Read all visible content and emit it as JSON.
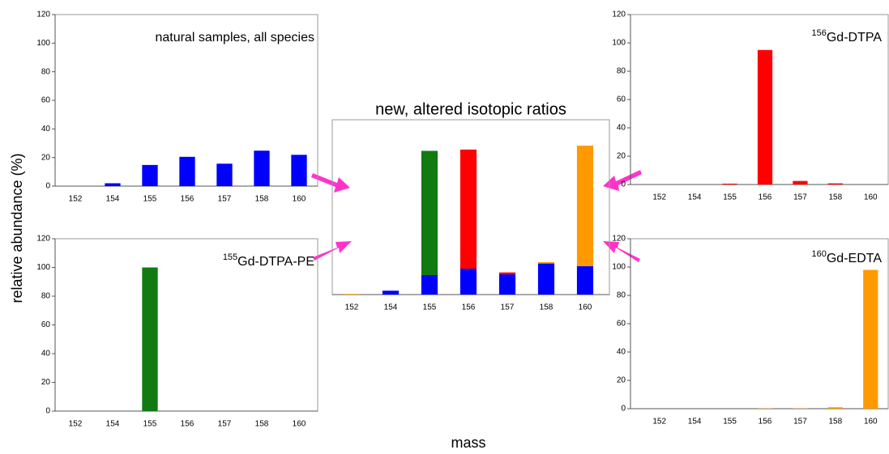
{
  "xlabel": "mass",
  "ylabel": "relative abundance (%)",
  "chart_data": [
    {
      "type": "bar",
      "title": "natural samples, all species",
      "categories": [
        "152",
        "154",
        "155",
        "156",
        "157",
        "158",
        "160"
      ],
      "values": [
        0,
        2,
        14.8,
        20.5,
        15.7,
        24.8,
        21.9
      ],
      "color": "#0000ff",
      "ylim": [
        0,
        120
      ],
      "yticks": [
        0,
        20,
        40,
        60,
        80,
        100,
        120
      ]
    },
    {
      "type": "bar",
      "title": {
        "sup": "156",
        "text": "Gd-DTPA"
      },
      "categories": [
        "152",
        "154",
        "155",
        "156",
        "157",
        "158",
        "160"
      ],
      "values": [
        0,
        0,
        0.6,
        95,
        2.5,
        0.8,
        0
      ],
      "color": "#ff0000",
      "ylim": [
        0,
        120
      ],
      "yticks": [
        0,
        20,
        40,
        60,
        80,
        100,
        120
      ]
    },
    {
      "type": "bar",
      "title": {
        "sup": "155",
        "text": "Gd-DTPA-PE"
      },
      "categories": [
        "152",
        "154",
        "155",
        "156",
        "157",
        "158",
        "160"
      ],
      "values": [
        0,
        0,
        100,
        0,
        0,
        0,
        0
      ],
      "color": "#117a11",
      "ylim": [
        0,
        120
      ],
      "yticks": [
        0,
        20,
        40,
        60,
        80,
        100,
        120
      ]
    },
    {
      "type": "bar",
      "title": {
        "sup": "160",
        "text": "Gd-EDTA"
      },
      "categories": [
        "152",
        "154",
        "155",
        "156",
        "157",
        "158",
        "160"
      ],
      "values": [
        0,
        0,
        0,
        0.2,
        0.2,
        1,
        98
      ],
      "color": "#ff9900",
      "ylim": [
        0,
        120
      ],
      "yticks": [
        0,
        20,
        40,
        60,
        80,
        100,
        120
      ]
    },
    {
      "type": "stacked_bar",
      "title": "new, altered isotopic ratios",
      "categories": [
        "152",
        "154",
        "155",
        "156",
        "157",
        "158",
        "160"
      ],
      "series": [
        {
          "color": "#0000ff",
          "values": [
            0,
            3,
            15,
            20,
            15.6,
            24,
            22
          ]
        },
        {
          "color": "#117a11",
          "values": [
            0,
            0,
            96,
            0,
            0,
            0,
            0
          ]
        },
        {
          "color": "#ff0000",
          "values": [
            0,
            0,
            0,
            92,
            1.5,
            0,
            0
          ]
        },
        {
          "color": "#ff9900",
          "values": [
            0.5,
            0,
            0,
            0,
            0,
            1,
            93
          ]
        }
      ],
      "ylim": [
        0,
        135
      ]
    }
  ]
}
